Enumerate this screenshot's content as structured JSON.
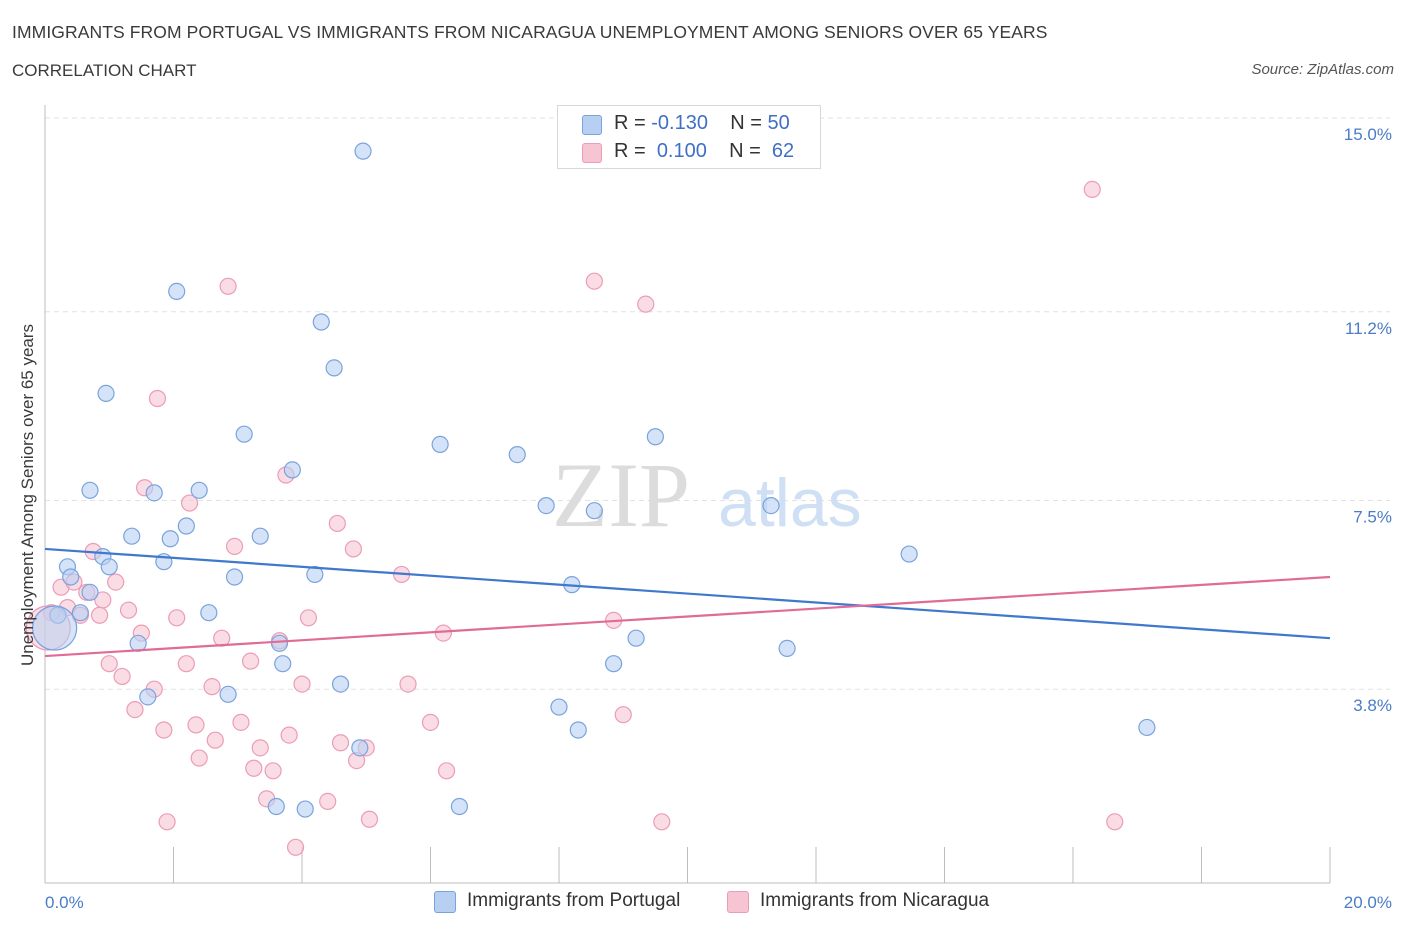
{
  "header": {
    "title": "IMMIGRANTS FROM PORTUGAL VS IMMIGRANTS FROM NICARAGUA UNEMPLOYMENT AMONG SENIORS OVER 65 YEARS",
    "subtitle": "CORRELATION CHART",
    "source": "Source: ZipAtlas.com"
  },
  "legend": {
    "portugal": {
      "r_label": "R =",
      "r_value": "-0.130",
      "n_label": "N =",
      "n_value": "50"
    },
    "nicaragua": {
      "r_label": "R =",
      "r_value": "0.100",
      "n_label": "N =",
      "n_value": "62"
    }
  },
  "watermark": {
    "zip": "ZIP",
    "atlas": "atlas"
  },
  "colors": {
    "portugal_fill": "#b7d0f2",
    "portugal_stroke": "#7aa3dd",
    "portugal_line": "#3f78cc",
    "nicaragua_fill": "#f7c4d4",
    "nicaragua_stroke": "#ec9cb6",
    "nicaragua_line": "#e06b96",
    "tick_text": "#4a7cc8"
  },
  "chart_data": {
    "type": "scatter",
    "title": "IMMIGRANTS FROM PORTUGAL VS IMMIGRANTS FROM NICARAGUA UNEMPLOYMENT AMONG SENIORS OVER 65 YEARS",
    "xlabel": "",
    "ylabel": "Unemployment Among Seniors over 65 years",
    "xlim": [
      0,
      20
    ],
    "ylim": [
      0,
      15
    ],
    "x_tick_labels": [
      {
        "value": 0,
        "label": "0.0%"
      },
      {
        "value": 20,
        "label": "20.0%"
      }
    ],
    "y_tick_labels": [
      {
        "value": 3.8,
        "label": "3.8%"
      },
      {
        "value": 7.5,
        "label": "7.5%"
      },
      {
        "value": 11.2,
        "label": "11.2%"
      },
      {
        "value": 15.0,
        "label": "15.0%"
      }
    ],
    "series": [
      {
        "name": "Immigrants from Portugal",
        "trend": {
          "x": [
            0,
            20
          ],
          "y": [
            6.55,
            4.8
          ]
        },
        "points": [
          [
            0.2,
            5.25
          ],
          [
            0.35,
            6.2
          ],
          [
            0.4,
            6.0
          ],
          [
            0.55,
            5.3
          ],
          [
            0.7,
            5.7
          ],
          [
            0.9,
            6.4
          ],
          [
            1.0,
            6.2
          ],
          [
            0.7,
            7.7
          ],
          [
            0.95,
            9.6
          ],
          [
            1.35,
            6.8
          ],
          [
            1.45,
            4.7
          ],
          [
            1.6,
            3.65
          ],
          [
            1.7,
            7.65
          ],
          [
            1.85,
            6.3
          ],
          [
            1.95,
            6.75
          ],
          [
            2.05,
            11.6
          ],
          [
            2.2,
            7.0
          ],
          [
            2.4,
            7.7
          ],
          [
            2.55,
            5.3
          ],
          [
            2.85,
            3.7
          ],
          [
            2.95,
            6.0
          ],
          [
            3.1,
            8.8
          ],
          [
            3.35,
            6.8
          ],
          [
            3.6,
            1.5
          ],
          [
            3.65,
            4.7
          ],
          [
            3.7,
            4.3
          ],
          [
            3.85,
            8.1
          ],
          [
            4.05,
            1.45
          ],
          [
            4.2,
            6.05
          ],
          [
            4.3,
            11.0
          ],
          [
            4.5,
            10.1
          ],
          [
            4.6,
            3.9
          ],
          [
            4.9,
            2.65
          ],
          [
            4.95,
            14.35
          ],
          [
            6.15,
            8.6
          ],
          [
            6.45,
            1.5
          ],
          [
            7.35,
            8.4
          ],
          [
            7.8,
            7.4
          ],
          [
            8.0,
            3.45
          ],
          [
            8.2,
            5.85
          ],
          [
            8.3,
            3.0
          ],
          [
            8.55,
            7.3
          ],
          [
            8.85,
            4.3
          ],
          [
            9.2,
            4.8
          ],
          [
            9.5,
            8.75
          ],
          [
            11.3,
            7.4
          ],
          [
            11.55,
            4.6
          ],
          [
            13.45,
            6.45
          ],
          [
            17.15,
            3.05
          ],
          [
            0.15,
            5.0
          ]
        ]
      },
      {
        "name": "Immigrants from Nicaragua",
        "trend": {
          "x": [
            0,
            20
          ],
          "y": [
            4.45,
            6.0
          ]
        },
        "points": [
          [
            0.1,
            5.3
          ],
          [
            0.25,
            5.8
          ],
          [
            0.35,
            5.4
          ],
          [
            0.45,
            5.9
          ],
          [
            0.55,
            5.25
          ],
          [
            0.65,
            5.7
          ],
          [
            0.75,
            6.5
          ],
          [
            0.85,
            5.25
          ],
          [
            0.9,
            5.55
          ],
          [
            1.0,
            4.3
          ],
          [
            1.1,
            5.9
          ],
          [
            1.2,
            4.05
          ],
          [
            1.3,
            5.35
          ],
          [
            1.4,
            3.4
          ],
          [
            1.5,
            4.9
          ],
          [
            1.55,
            7.75
          ],
          [
            1.7,
            3.8
          ],
          [
            1.75,
            9.5
          ],
          [
            1.85,
            3.0
          ],
          [
            1.9,
            1.2
          ],
          [
            2.05,
            5.2
          ],
          [
            2.2,
            4.3
          ],
          [
            2.25,
            7.45
          ],
          [
            2.35,
            3.1
          ],
          [
            2.4,
            2.45
          ],
          [
            2.6,
            3.85
          ],
          [
            2.65,
            2.8
          ],
          [
            2.75,
            4.8
          ],
          [
            2.85,
            11.7
          ],
          [
            2.95,
            6.6
          ],
          [
            3.05,
            3.15
          ],
          [
            3.2,
            4.35
          ],
          [
            3.25,
            2.25
          ],
          [
            3.35,
            2.65
          ],
          [
            3.45,
            1.65
          ],
          [
            3.55,
            2.2
          ],
          [
            3.65,
            4.75
          ],
          [
            3.75,
            8.0
          ],
          [
            3.8,
            2.9
          ],
          [
            3.9,
            0.7
          ],
          [
            4.0,
            3.9
          ],
          [
            4.1,
            5.2
          ],
          [
            4.4,
            1.6
          ],
          [
            4.55,
            7.05
          ],
          [
            4.6,
            2.75
          ],
          [
            4.8,
            6.55
          ],
          [
            4.85,
            2.4
          ],
          [
            5.0,
            2.65
          ],
          [
            5.05,
            1.25
          ],
          [
            5.55,
            6.05
          ],
          [
            5.65,
            3.9
          ],
          [
            6.0,
            3.15
          ],
          [
            6.2,
            4.9
          ],
          [
            6.25,
            2.2
          ],
          [
            8.55,
            11.8
          ],
          [
            8.85,
            5.15
          ],
          [
            9.0,
            3.3
          ],
          [
            9.35,
            11.35
          ],
          [
            9.6,
            1.2
          ],
          [
            16.3,
            13.6
          ],
          [
            16.65,
            1.2
          ],
          [
            0.05,
            5.0
          ]
        ]
      }
    ]
  },
  "x_axis_labels": {
    "left": "0.0%",
    "right": "20.0%"
  },
  "bottom_legend": {
    "portugal": "Immigrants from Portugal",
    "nicaragua": "Immigrants from Nicaragua"
  }
}
